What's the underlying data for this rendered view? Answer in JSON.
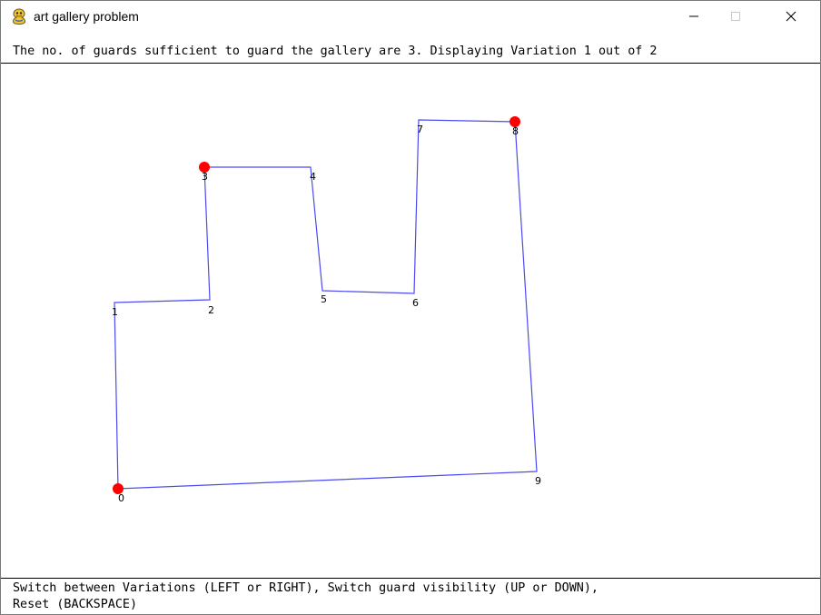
{
  "window": {
    "title": "art gallery problem",
    "app_icon": "pygame-snake-icon",
    "controls": [
      "minimize-icon",
      "maximize-icon",
      "close-icon"
    ]
  },
  "status_top": "The no. of guards sufficient to guard the gallery are 3. Displaying Variation 1 out of 2",
  "status_bottom": {
    "line1": "Switch between Variations (LEFT or RIGHT), Switch guard visibility (UP or DOWN),",
    "line2": "Reset (BACKSPACE)"
  },
  "colors": {
    "polygon_edge": "#4a4af0",
    "guard": "#ff0000",
    "label": "#000000"
  },
  "polygon": {
    "vertices": [
      {
        "label": "0"
      },
      {
        "label": "1"
      },
      {
        "label": "2"
      },
      {
        "label": "3"
      },
      {
        "label": "4"
      },
      {
        "label": "5"
      },
      {
        "label": "6"
      },
      {
        "label": "7"
      },
      {
        "label": "8"
      },
      {
        "label": "9"
      }
    ],
    "guard_vertices": [
      "0",
      "3",
      "8"
    ]
  }
}
